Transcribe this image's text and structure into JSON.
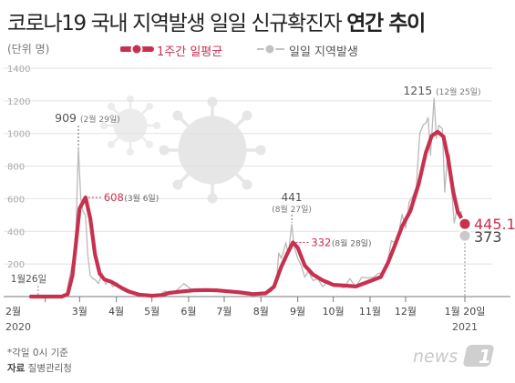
{
  "title": {
    "main": "코로나19 국내 지역발생 일일 신규확진자",
    "bold": "연간 추이"
  },
  "unit_label": "(단위 명)",
  "legend": [
    {
      "label": "1주간 일평균",
      "color": "#c8304f"
    },
    {
      "label": "일일 지역발생",
      "color": "#c2c2c2"
    }
  ],
  "footer": {
    "note": "*각일 0시 기준",
    "source_key": "자료",
    "source_value": "질병관리청"
  },
  "logo_text": "news 1",
  "colors": {
    "avg": "#c8304f",
    "daily": "#b9b9b9",
    "grid": "#e2e2e2",
    "annot": "#c8304f",
    "virus": "#e9e9e9"
  },
  "chart_data": {
    "type": "line",
    "x_axis": {
      "type": "date",
      "range": [
        "2020-01-20",
        "2021-01-20"
      ],
      "ticks": [
        {
          "date": "2020-02-01",
          "label": "2월",
          "sub": "2020"
        },
        {
          "date": "2020-03-01",
          "label": "3월"
        },
        {
          "date": "2020-04-01",
          "label": "4월"
        },
        {
          "date": "2020-05-01",
          "label": "5월"
        },
        {
          "date": "2020-06-01",
          "label": "6월"
        },
        {
          "date": "2020-07-01",
          "label": "7월"
        },
        {
          "date": "2020-08-01",
          "label": "8월"
        },
        {
          "date": "2020-09-01",
          "label": "9월"
        },
        {
          "date": "2020-10-01",
          "label": "10월"
        },
        {
          "date": "2020-11-01",
          "label": "11월"
        },
        {
          "date": "2020-12-01",
          "label": "12월"
        },
        {
          "date": "2021-01-20",
          "label": "1월 20일",
          "sub": "2021"
        }
      ]
    },
    "y_axis": {
      "min": 0,
      "max": 1400,
      "ticks": [
        0,
        200,
        400,
        600,
        800,
        1000,
        1200,
        1400
      ]
    },
    "grid": true,
    "series": [
      {
        "name": "1주간 일평균",
        "points": [
          [
            "2020-01-20",
            0
          ],
          [
            "2020-02-15",
            0
          ],
          [
            "2020-02-20",
            15
          ],
          [
            "2020-02-24",
            130
          ],
          [
            "2020-02-27",
            330
          ],
          [
            "2020-03-01",
            540
          ],
          [
            "2020-03-06",
            608
          ],
          [
            "2020-03-10",
            480
          ],
          [
            "2020-03-14",
            260
          ],
          [
            "2020-03-18",
            140
          ],
          [
            "2020-03-22",
            105
          ],
          [
            "2020-03-28",
            90
          ],
          [
            "2020-04-05",
            55
          ],
          [
            "2020-04-12",
            30
          ],
          [
            "2020-04-20",
            12
          ],
          [
            "2020-05-01",
            5
          ],
          [
            "2020-05-10",
            10
          ],
          [
            "2020-05-15",
            22
          ],
          [
            "2020-05-25",
            30
          ],
          [
            "2020-06-05",
            38
          ],
          [
            "2020-06-15",
            40
          ],
          [
            "2020-06-25",
            38
          ],
          [
            "2020-07-05",
            32
          ],
          [
            "2020-07-15",
            25
          ],
          [
            "2020-07-25",
            15
          ],
          [
            "2020-08-05",
            20
          ],
          [
            "2020-08-12",
            60
          ],
          [
            "2020-08-18",
            180
          ],
          [
            "2020-08-23",
            260
          ],
          [
            "2020-08-28",
            332
          ],
          [
            "2020-09-01",
            300
          ],
          [
            "2020-09-07",
            190
          ],
          [
            "2020-09-14",
            135
          ],
          [
            "2020-09-22",
            100
          ],
          [
            "2020-10-01",
            72
          ],
          [
            "2020-10-10",
            68
          ],
          [
            "2020-10-20",
            62
          ],
          [
            "2020-11-01",
            95
          ],
          [
            "2020-11-10",
            120
          ],
          [
            "2020-11-16",
            205
          ],
          [
            "2020-11-22",
            315
          ],
          [
            "2020-11-28",
            430
          ],
          [
            "2020-12-05",
            525
          ],
          [
            "2020-12-12",
            690
          ],
          [
            "2020-12-18",
            880
          ],
          [
            "2020-12-23",
            985
          ],
          [
            "2020-12-28",
            1010
          ],
          [
            "2021-01-02",
            980
          ],
          [
            "2021-01-06",
            840
          ],
          [
            "2021-01-10",
            650
          ],
          [
            "2021-01-14",
            520
          ],
          [
            "2021-01-20",
            445.1
          ]
        ]
      },
      {
        "name": "일일 지역발생",
        "points": [
          [
            "2020-01-20",
            0
          ],
          [
            "2020-02-17",
            0
          ],
          [
            "2020-02-19",
            20
          ],
          [
            "2020-02-21",
            100
          ],
          [
            "2020-02-23",
            170
          ],
          [
            "2020-02-25",
            250
          ],
          [
            "2020-02-27",
            420
          ],
          [
            "2020-02-29",
            909
          ],
          [
            "2020-03-02",
            600
          ],
          [
            "2020-03-04",
            520
          ],
          [
            "2020-03-06",
            500
          ],
          [
            "2020-03-08",
            250
          ],
          [
            "2020-03-10",
            130
          ],
          [
            "2020-03-12",
            110
          ],
          [
            "2020-03-14",
            105
          ],
          [
            "2020-03-17",
            80
          ],
          [
            "2020-03-20",
            145
          ],
          [
            "2020-03-23",
            75
          ],
          [
            "2020-03-26",
            100
          ],
          [
            "2020-03-29",
            60
          ],
          [
            "2020-04-02",
            85
          ],
          [
            "2020-04-05",
            45
          ],
          [
            "2020-04-10",
            25
          ],
          [
            "2020-04-15",
            18
          ],
          [
            "2020-04-22",
            8
          ],
          [
            "2020-05-01",
            6
          ],
          [
            "2020-05-08",
            15
          ],
          [
            "2020-05-12",
            34
          ],
          [
            "2020-05-18",
            15
          ],
          [
            "2020-05-28",
            79
          ],
          [
            "2020-06-03",
            46
          ],
          [
            "2020-06-10",
            48
          ],
          [
            "2020-06-17",
            33
          ],
          [
            "2020-06-24",
            46
          ],
          [
            "2020-07-01",
            38
          ],
          [
            "2020-07-08",
            30
          ],
          [
            "2020-07-15",
            26
          ],
          [
            "2020-07-22",
            28
          ],
          [
            "2020-07-29",
            14
          ],
          [
            "2020-08-05",
            20
          ],
          [
            "2020-08-10",
            31
          ],
          [
            "2020-08-14",
            85
          ],
          [
            "2020-08-16",
            267
          ],
          [
            "2020-08-18",
            235
          ],
          [
            "2020-08-20",
            276
          ],
          [
            "2020-08-22",
            332
          ],
          [
            "2020-08-24",
            258
          ],
          [
            "2020-08-27",
            441
          ],
          [
            "2020-08-29",
            308
          ],
          [
            "2020-09-01",
            235
          ],
          [
            "2020-09-04",
            189
          ],
          [
            "2020-09-07",
            119
          ],
          [
            "2020-09-10",
            155
          ],
          [
            "2020-09-14",
            98
          ],
          [
            "2020-09-18",
            110
          ],
          [
            "2020-09-22",
            61
          ],
          [
            "2020-09-27",
            95
          ],
          [
            "2020-10-01",
            77
          ],
          [
            "2020-10-05",
            64
          ],
          [
            "2020-10-10",
            54
          ],
          [
            "2020-10-15",
            110
          ],
          [
            "2020-10-20",
            58
          ],
          [
            "2020-10-25",
            119
          ],
          [
            "2020-10-30",
            114
          ],
          [
            "2020-11-04",
            118
          ],
          [
            "2020-11-08",
            143
          ],
          [
            "2020-11-12",
            143
          ],
          [
            "2020-11-16",
            223
          ],
          [
            "2020-11-19",
            343
          ],
          [
            "2020-11-22",
            330
          ],
          [
            "2020-11-25",
            382
          ],
          [
            "2020-11-28",
            504
          ],
          [
            "2020-12-01",
            420
          ],
          [
            "2020-12-04",
            580
          ],
          [
            "2020-12-07",
            615
          ],
          [
            "2020-12-10",
            671
          ],
          [
            "2020-12-13",
            1002
          ],
          [
            "2020-12-16",
            1054
          ],
          [
            "2020-12-18",
            1062
          ],
          [
            "2020-12-20",
            1097
          ],
          [
            "2020-12-22",
            867
          ],
          [
            "2020-12-25",
            1215
          ],
          [
            "2020-12-27",
            970
          ],
          [
            "2020-12-29",
            1050
          ],
          [
            "2021-01-01",
            1029
          ],
          [
            "2021-01-03",
            641
          ],
          [
            "2021-01-05",
            840
          ],
          [
            "2021-01-07",
            869
          ],
          [
            "2021-01-09",
            641
          ],
          [
            "2021-01-11",
            451
          ],
          [
            "2021-01-13",
            524
          ],
          [
            "2021-01-15",
            512
          ],
          [
            "2021-01-17",
            520
          ],
          [
            "2021-01-18",
            389
          ],
          [
            "2021-01-20",
            373
          ]
        ]
      }
    ],
    "annotations": [
      {
        "series": 1,
        "date": "2020-02-29",
        "value": 909,
        "text": "909",
        "sub": "(2월 29일)",
        "style": "gray-left",
        "dy": -25
      },
      {
        "series": 0,
        "date": "2020-03-06",
        "value": 608,
        "text": "608",
        "sub": "(3월 6일)",
        "style": "red-right",
        "dy": 0
      },
      {
        "series": 1,
        "date": "2020-08-27",
        "value": 441,
        "text": "441",
        "sub": "(8월 27일)",
        "style": "gray-above",
        "dy": 0
      },
      {
        "series": 0,
        "date": "2020-08-28",
        "value": 332,
        "text": "332",
        "sub": "(8월 28일)",
        "style": "red-right",
        "dy": 0
      },
      {
        "series": 1,
        "date": "2020-12-25",
        "value": 1215,
        "text": "1215",
        "sub": "(12월 25일)",
        "style": "gray-left",
        "dy": 0
      },
      {
        "series": 0,
        "date": "2021-01-20",
        "value": 445.1,
        "text": "445.1",
        "style": "red-end"
      },
      {
        "series": 1,
        "date": "2021-01-20",
        "value": 373,
        "text": "373",
        "style": "gray-end"
      },
      {
        "date": "2020-01-26",
        "text": "1월26일",
        "style": "start"
      }
    ]
  }
}
